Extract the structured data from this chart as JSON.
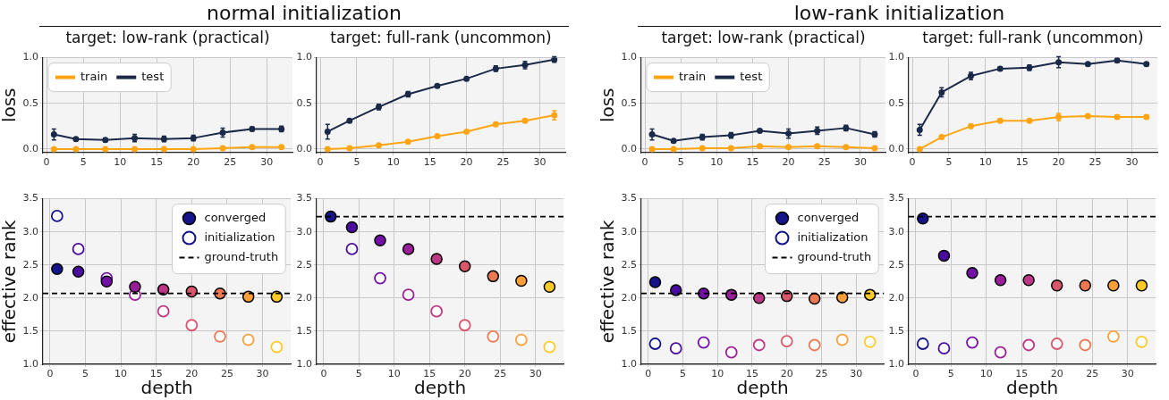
{
  "chart_data": [
    {
      "type": "line",
      "title": "target: low-rank (practical)",
      "annotations": [
        "normal initialization"
      ],
      "ylabel": "loss",
      "x": [
        1,
        4,
        8,
        12,
        16,
        20,
        24,
        28,
        32
      ],
      "xlim": [
        -0.5,
        33.5
      ],
      "xticks": [
        0,
        5,
        10,
        15,
        20,
        25,
        30
      ],
      "ylim": [
        -0.04,
        1.0
      ],
      "yticks": [
        {
          "value": 0,
          "label": "0.0"
        },
        {
          "value": 0.5,
          "label": "0.5"
        },
        {
          "value": 1,
          "label": "1.0"
        }
      ],
      "grid": true,
      "legend": "top left",
      "marker": "circle",
      "line_style": "solid",
      "series": [
        {
          "name": "train",
          "color": "#ffa514",
          "values": [
            0,
            0,
            0,
            0,
            0,
            0,
            0.01,
            0.02,
            0.02
          ]
        },
        {
          "name": "test",
          "color": "#1b2a49",
          "values": [
            0.16,
            0.11,
            0.1,
            0.12,
            0.11,
            0.12,
            0.18,
            0.22,
            0.22
          ],
          "errors": [
            0.06,
            0.01,
            0.02,
            0.04,
            0.03,
            0.03,
            0.05,
            0.02,
            0.03
          ]
        }
      ]
    },
    {
      "type": "line",
      "title": "target: full-rank (uncommon)",
      "x": [
        1,
        4,
        8,
        12,
        16,
        20,
        24,
        28,
        32
      ],
      "xlim": [
        -0.5,
        33.5
      ],
      "xticks": [
        0,
        5,
        10,
        15,
        20,
        25,
        30
      ],
      "ylim": [
        -0.04,
        1.0
      ],
      "yticks": [
        {
          "value": 0,
          "label": "0.0"
        },
        {
          "value": 0.5,
          "label": "0.5"
        },
        {
          "value": 1,
          "label": "1.0"
        }
      ],
      "grid": true,
      "marker": "circle",
      "line_style": "solid",
      "series": [
        {
          "color": "#ffa514",
          "values": [
            0,
            0.01,
            0.04,
            0.08,
            0.14,
            0.19,
            0.27,
            0.31,
            0.37
          ],
          "errors": [
            0,
            0,
            0.01,
            0.01,
            0.01,
            0.01,
            0.02,
            0.02,
            0.05
          ]
        },
        {
          "color": "#1b2a49",
          "values": [
            0.19,
            0.31,
            0.46,
            0.6,
            0.69,
            0.77,
            0.88,
            0.92,
            0.98
          ],
          "errors": [
            0.08,
            0.01,
            0.03,
            0.03,
            0.01,
            0.01,
            0.03,
            0.04,
            0.03
          ]
        }
      ]
    },
    {
      "type": "line",
      "title": "target: low-rank (practical)",
      "annotations": [
        "low-rank initialization"
      ],
      "ylabel": "loss",
      "x": [
        1,
        4,
        8,
        12,
        16,
        20,
        24,
        28,
        32
      ],
      "xlim": [
        -0.5,
        33.5
      ],
      "xticks": [
        0,
        5,
        10,
        15,
        20,
        25,
        30
      ],
      "ylim": [
        -0.04,
        1.0
      ],
      "yticks": [
        {
          "value": 0,
          "label": "0.0"
        },
        {
          "value": 0.5,
          "label": "0.5"
        },
        {
          "value": 1,
          "label": "1.0"
        }
      ],
      "grid": true,
      "legend": "top left",
      "marker": "circle",
      "line_style": "solid",
      "series": [
        {
          "name": "train",
          "color": "#ffa514",
          "values": [
            0,
            0,
            0.01,
            0.01,
            0.03,
            0.02,
            0.03,
            0.02,
            0.01
          ]
        },
        {
          "name": "test",
          "color": "#1b2a49",
          "values": [
            0.16,
            0.09,
            0.13,
            0.15,
            0.2,
            0.17,
            0.2,
            0.23,
            0.16
          ],
          "errors": [
            0.06,
            0.01,
            0.03,
            0.03,
            0.01,
            0.05,
            0.04,
            0.03,
            0.03
          ]
        }
      ]
    },
    {
      "type": "line",
      "title": "target: full-rank (uncommon)",
      "x": [
        1,
        4,
        8,
        12,
        16,
        20,
        24,
        28,
        32
      ],
      "xlim": [
        -0.5,
        33.5
      ],
      "xticks": [
        0,
        5,
        10,
        15,
        20,
        25,
        30
      ],
      "ylim": [
        -0.04,
        1.0
      ],
      "yticks": [
        {
          "value": 0,
          "label": "0.0"
        },
        {
          "value": 0.5,
          "label": "0.5"
        },
        {
          "value": 1,
          "label": "1.0"
        }
      ],
      "grid": true,
      "marker": "circle",
      "line_style": "solid",
      "series": [
        {
          "color": "#ffa514",
          "values": [
            0,
            0.13,
            0.25,
            0.31,
            0.31,
            0.35,
            0.36,
            0.35,
            0.35
          ],
          "errors": [
            0,
            0.01,
            0.02,
            0.02,
            0.01,
            0.04,
            0.01,
            0.02,
            0.02
          ]
        },
        {
          "color": "#1b2a49",
          "values": [
            0.21,
            0.62,
            0.8,
            0.88,
            0.89,
            0.95,
            0.93,
            0.97,
            0.93
          ],
          "errors": [
            0.06,
            0.05,
            0.04,
            0.02,
            0.03,
            0.06,
            0.01,
            0.02,
            0.02
          ]
        }
      ]
    },
    {
      "type": "scatter",
      "xlabel": "depth",
      "ylabel": "effective rank",
      "x": [
        1,
        4,
        8,
        12,
        16,
        20,
        24,
        28,
        32
      ],
      "xlim": [
        -1,
        34
      ],
      "xticks": [
        0,
        5,
        10,
        15,
        20,
        25,
        30
      ],
      "ylim": [
        1,
        3.5
      ],
      "yticks": [
        {
          "value": 1,
          "label": "1.0"
        },
        {
          "value": 1.5,
          "label": "1.5"
        },
        {
          "value": 2,
          "label": "2.0"
        },
        {
          "value": 2.5,
          "label": "2.5"
        },
        {
          "value": 3,
          "label": "3.0"
        },
        {
          "value": 3.5,
          "label": "3.5"
        }
      ],
      "grid": true,
      "legend": "top right",
      "marker": "circle",
      "ref_lines": [
        {
          "axis": "y",
          "value": 2.07,
          "label": "ground-truth",
          "color": "#000000",
          "line_style": "dashed"
        }
      ],
      "series": [
        {
          "name": "converged",
          "colors": [
            "#14138a",
            "#4a0c9f",
            "#7410a8",
            "#9a1d9a",
            "#bd3786",
            "#d8576b",
            "#ed7953",
            "#fb9f3a",
            "#fdca26"
          ],
          "values": [
            2.44,
            2.4,
            2.25,
            2.17,
            2.13,
            2.1,
            2.07,
            2.02,
            2.02
          ]
        },
        {
          "name": "initialization",
          "colors": [
            "#14138a",
            "#4a0c9f",
            "#7410a8",
            "#9a1d9a",
            "#bd3786",
            "#d8576b",
            "#ed7953",
            "#fb9f3a",
            "#fdca26"
          ],
          "values": [
            3.24,
            2.74,
            2.3,
            2.05,
            1.8,
            1.59,
            1.42,
            1.37,
            1.26
          ]
        }
      ]
    },
    {
      "type": "scatter",
      "xlabel": "depth",
      "x": [
        1,
        4,
        8,
        12,
        16,
        20,
        24,
        28,
        32
      ],
      "xlim": [
        -1,
        34
      ],
      "xticks": [
        0,
        5,
        10,
        15,
        20,
        25,
        30
      ],
      "ylim": [
        1,
        3.5
      ],
      "yticks": [
        {
          "value": 1,
          "label": "1.0"
        },
        {
          "value": 1.5,
          "label": "1.5"
        },
        {
          "value": 2,
          "label": "2.0"
        },
        {
          "value": 2.5,
          "label": "2.5"
        },
        {
          "value": 3,
          "label": "3.0"
        },
        {
          "value": 3.5,
          "label": "3.5"
        }
      ],
      "grid": true,
      "marker": "circle",
      "ref_lines": [
        {
          "axis": "y",
          "value": 3.23,
          "color": "#000000",
          "line_style": "dashed"
        }
      ],
      "series": [
        {
          "color": "#1f5a85",
          "colors": [
            "#14138a",
            "#4a0c9f",
            "#7410a8",
            "#9a1d9a",
            "#bd3786",
            "#d8576b",
            "#ed7953",
            "#fb9f3a",
            "#fdca26"
          ],
          "values": [
            3.23,
            3.07,
            2.87,
            2.74,
            2.59,
            2.48,
            2.33,
            2.26,
            2.17
          ]
        },
        {
          "color": "#1f5a85",
          "colors": [
            "#14138a",
            "#4a0c9f",
            "#7410a8",
            "#9a1d9a",
            "#bd3786",
            "#d8576b",
            "#ed7953",
            "#fb9f3a",
            "#fdca26"
          ],
          "values": [
            null,
            2.74,
            2.3,
            2.05,
            1.8,
            1.59,
            1.42,
            1.37,
            1.26
          ]
        }
      ]
    },
    {
      "type": "scatter",
      "xlabel": "depth",
      "ylabel": "effective rank",
      "x": [
        1,
        4,
        8,
        12,
        16,
        20,
        24,
        28,
        32
      ],
      "xlim": [
        -1,
        34
      ],
      "xticks": [
        0,
        5,
        10,
        15,
        20,
        25,
        30
      ],
      "ylim": [
        1,
        3.5
      ],
      "yticks": [
        {
          "value": 1,
          "label": "1.0"
        },
        {
          "value": 1.5,
          "label": "1.5"
        },
        {
          "value": 2,
          "label": "2.0"
        },
        {
          "value": 2.5,
          "label": "2.5"
        },
        {
          "value": 3,
          "label": "3.0"
        },
        {
          "value": 3.5,
          "label": "3.5"
        }
      ],
      "grid": true,
      "legend": "top right",
      "marker": "circle",
      "ref_lines": [
        {
          "axis": "y",
          "value": 2.07,
          "label": "ground-truth",
          "color": "#000000",
          "line_style": "dashed"
        }
      ],
      "series": [
        {
          "name": "converged",
          "colors": [
            "#14138a",
            "#4a0c9f",
            "#7410a8",
            "#9a1d9a",
            "#bd3786",
            "#d8576b",
            "#ed7953",
            "#fb9f3a",
            "#fdca26"
          ],
          "values": [
            2.24,
            2.12,
            2.07,
            2.05,
            2.0,
            2.03,
            1.99,
            2.01,
            2.05
          ]
        },
        {
          "name": "initialization",
          "colors": [
            "#14138a",
            "#4a0c9f",
            "#7410a8",
            "#9a1d9a",
            "#bd3786",
            "#d8576b",
            "#ed7953",
            "#fb9f3a",
            "#fdca26"
          ],
          "values": [
            1.31,
            1.24,
            1.33,
            1.18,
            1.29,
            1.35,
            1.29,
            1.37,
            1.34
          ]
        }
      ]
    },
    {
      "type": "scatter",
      "xlabel": "depth",
      "x": [
        1,
        4,
        8,
        12,
        16,
        20,
        24,
        28,
        32
      ],
      "xlim": [
        -1,
        34
      ],
      "xticks": [
        0,
        5,
        10,
        15,
        20,
        25,
        30
      ],
      "ylim": [
        1,
        3.5
      ],
      "yticks": [
        {
          "value": 1,
          "label": "1.0"
        },
        {
          "value": 1.5,
          "label": "1.5"
        },
        {
          "value": 2,
          "label": "2.0"
        },
        {
          "value": 2.5,
          "label": "2.5"
        },
        {
          "value": 3,
          "label": "3.0"
        },
        {
          "value": 3.5,
          "label": "3.5"
        }
      ],
      "grid": true,
      "marker": "circle",
      "ref_lines": [
        {
          "axis": "y",
          "value": 3.23,
          "color": "#000000",
          "line_style": "dashed"
        }
      ],
      "series": [
        {
          "color": "#1f5a85",
          "colors": [
            "#14138a",
            "#4a0c9f",
            "#7410a8",
            "#9a1d9a",
            "#bd3786",
            "#d8576b",
            "#ed7953",
            "#fb9f3a",
            "#fdca26"
          ],
          "values": [
            3.2,
            2.64,
            2.38,
            2.27,
            2.27,
            2.19,
            2.19,
            2.19,
            2.19
          ]
        },
        {
          "color": "#1f5a85",
          "colors": [
            "#14138a",
            "#4a0c9f",
            "#7410a8",
            "#9a1d9a",
            "#bd3786",
            "#d8576b",
            "#ed7953",
            "#fb9f3a",
            "#fdca26"
          ],
          "values": [
            1.31,
            1.24,
            1.33,
            1.18,
            1.29,
            1.31,
            1.29,
            1.42,
            1.34
          ]
        }
      ]
    }
  ]
}
